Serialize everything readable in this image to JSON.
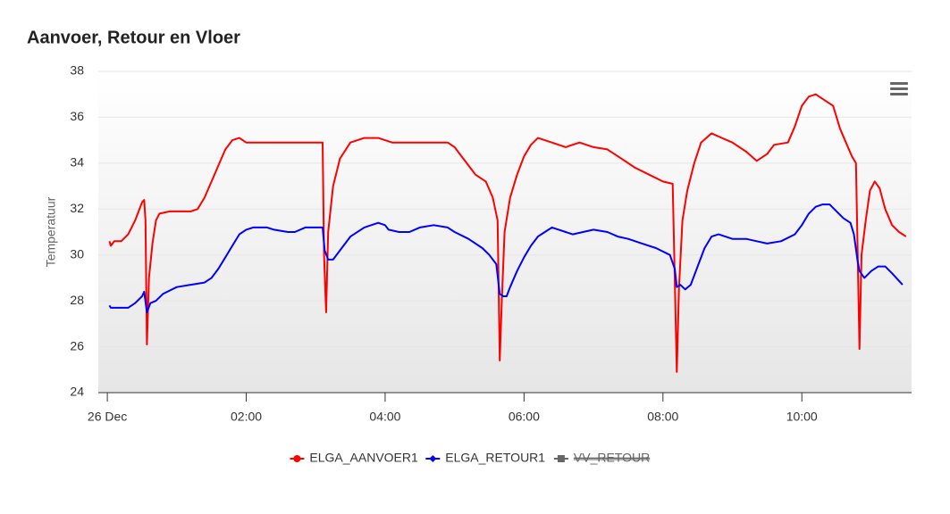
{
  "chart_data": {
    "type": "line",
    "title": "Aanvoer, Retour en Vloer",
    "y_label": "Temperatuur",
    "xlim": [
      -0.13,
      11.58
    ],
    "xticks": [
      {
        "value": 0,
        "label": "26 Dec"
      },
      {
        "value": 2,
        "label": "02:00"
      },
      {
        "value": 4,
        "label": "04:00"
      },
      {
        "value": 6,
        "label": "06:00"
      },
      {
        "value": 8,
        "label": "08:00"
      },
      {
        "value": 10,
        "label": "10:00"
      }
    ],
    "ylim": [
      24,
      38
    ],
    "yticks": [
      24,
      26,
      28,
      30,
      32,
      34,
      36,
      38
    ],
    "grid": true,
    "legend": "bottom",
    "series": [
      {
        "name": "ELGA_AANVOER1",
        "color": "#ff0000",
        "marker": "circle",
        "x": [
          0.03,
          0.05,
          0.1,
          0.2,
          0.3,
          0.4,
          0.45,
          0.5,
          0.53,
          0.55,
          0.57,
          0.6,
          0.65,
          0.7,
          0.75,
          0.9,
          1.2,
          1.3,
          1.4,
          1.5,
          1.6,
          1.7,
          1.8,
          1.9,
          2.0,
          2.5,
          2.8,
          3.1,
          3.12,
          3.15,
          3.18,
          3.25,
          3.35,
          3.5,
          3.7,
          3.9,
          4.1,
          4.4,
          4.6,
          4.9,
          5.0,
          5.1,
          5.2,
          5.3,
          5.45,
          5.55,
          5.62,
          5.65,
          5.68,
          5.72,
          5.8,
          5.9,
          6.0,
          6.1,
          6.2,
          6.4,
          6.6,
          6.8,
          7.0,
          7.2,
          7.4,
          7.6,
          7.8,
          8.0,
          8.14,
          8.17,
          8.2,
          8.23,
          8.28,
          8.35,
          8.45,
          8.55,
          8.7,
          8.85,
          9.0,
          9.2,
          9.35,
          9.5,
          9.6,
          9.8,
          9.9,
          10.0,
          10.1,
          10.2,
          10.35,
          10.45,
          10.55,
          10.65,
          10.72,
          10.78,
          10.81,
          10.83,
          10.86,
          10.92,
          10.98,
          11.05,
          11.12,
          11.2,
          11.3,
          11.4,
          11.5
        ],
        "values": [
          30.6,
          30.4,
          30.6,
          30.6,
          30.9,
          31.5,
          31.9,
          32.3,
          32.4,
          31.5,
          26.1,
          29.0,
          30.5,
          31.5,
          31.8,
          31.9,
          31.9,
          32.0,
          32.5,
          33.2,
          33.9,
          34.6,
          35.0,
          35.1,
          34.9,
          34.9,
          34.9,
          34.9,
          30.0,
          27.5,
          31.0,
          33.0,
          34.2,
          34.9,
          35.1,
          35.1,
          34.9,
          34.9,
          34.9,
          34.9,
          34.7,
          34.3,
          33.9,
          33.5,
          33.2,
          32.5,
          31.5,
          25.4,
          28.0,
          31.0,
          32.5,
          33.5,
          34.3,
          34.8,
          35.1,
          34.9,
          34.7,
          34.9,
          34.7,
          34.6,
          34.2,
          33.8,
          33.5,
          33.2,
          33.1,
          29.0,
          24.9,
          28.5,
          31.5,
          32.8,
          34.0,
          34.9,
          35.3,
          35.1,
          34.9,
          34.5,
          34.1,
          34.4,
          34.8,
          34.9,
          35.6,
          36.5,
          36.9,
          37.0,
          36.7,
          36.5,
          35.5,
          34.8,
          34.3,
          34.0,
          29.0,
          25.9,
          30.0,
          31.5,
          32.8,
          33.2,
          32.9,
          32.0,
          31.3,
          31.0,
          30.8
        ]
      },
      {
        "name": "ELGA_RETOUR1",
        "color": "#0000ff",
        "marker": "diamond",
        "x": [
          0.03,
          0.05,
          0.3,
          0.4,
          0.5,
          0.53,
          0.57,
          0.62,
          0.7,
          0.8,
          1.0,
          1.2,
          1.4,
          1.5,
          1.6,
          1.7,
          1.8,
          1.9,
          2.0,
          2.1,
          2.3,
          2.4,
          2.6,
          2.7,
          2.85,
          3.1,
          3.13,
          3.18,
          3.25,
          3.35,
          3.5,
          3.7,
          3.9,
          4.0,
          4.05,
          4.2,
          4.35,
          4.5,
          4.7,
          4.9,
          5.0,
          5.2,
          5.4,
          5.5,
          5.6,
          5.65,
          5.7,
          5.75,
          5.8,
          5.9,
          6.0,
          6.1,
          6.2,
          6.3,
          6.4,
          6.5,
          6.6,
          6.7,
          6.85,
          7.0,
          7.2,
          7.35,
          7.5,
          7.7,
          7.9,
          8.1,
          8.17,
          8.2,
          8.25,
          8.32,
          8.4,
          8.5,
          8.6,
          8.7,
          8.8,
          8.9,
          9.0,
          9.2,
          9.35,
          9.5,
          9.7,
          9.9,
          10.0,
          10.1,
          10.2,
          10.3,
          10.4,
          10.5,
          10.6,
          10.7,
          10.75,
          10.8,
          10.83,
          10.9,
          11.0,
          11.1,
          11.2,
          11.3,
          11.45
        ],
        "values": [
          27.8,
          27.7,
          27.7,
          27.9,
          28.2,
          28.4,
          27.5,
          27.9,
          28.0,
          28.3,
          28.6,
          28.7,
          28.8,
          29.0,
          29.4,
          29.9,
          30.4,
          30.9,
          31.1,
          31.2,
          31.2,
          31.1,
          31.0,
          31.0,
          31.2,
          31.2,
          30.2,
          29.8,
          29.8,
          30.2,
          30.8,
          31.2,
          31.4,
          31.3,
          31.1,
          31.0,
          31.0,
          31.2,
          31.3,
          31.2,
          31.0,
          30.7,
          30.3,
          30.0,
          29.6,
          28.3,
          28.2,
          28.2,
          28.6,
          29.3,
          29.9,
          30.4,
          30.8,
          31.0,
          31.2,
          31.1,
          31.0,
          30.9,
          31.0,
          31.1,
          31.0,
          30.8,
          30.7,
          30.5,
          30.3,
          30.0,
          29.4,
          28.6,
          28.7,
          28.5,
          28.7,
          29.5,
          30.3,
          30.8,
          30.9,
          30.8,
          30.7,
          30.7,
          30.6,
          30.5,
          30.6,
          30.9,
          31.3,
          31.8,
          32.1,
          32.2,
          32.2,
          31.9,
          31.6,
          31.4,
          30.9,
          29.8,
          29.3,
          29.0,
          29.3,
          29.5,
          29.5,
          29.2,
          28.7
        ]
      },
      {
        "name": "VV_RETOUR",
        "color": "#666666",
        "marker": "square",
        "visible": false
      }
    ]
  }
}
